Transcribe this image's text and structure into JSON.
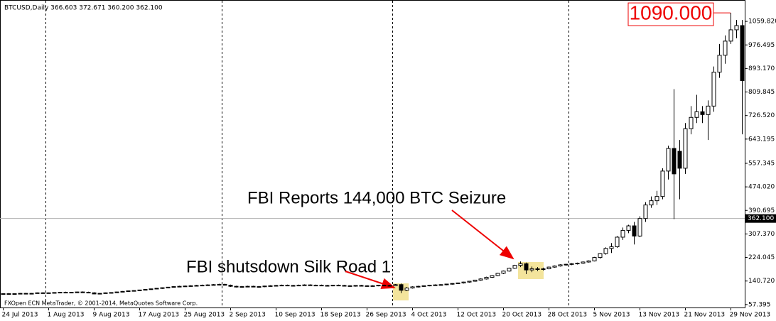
{
  "chart_data": {
    "type": "candlestick",
    "title": "BTCUSD,Daily  366.603 372.671 360.200 362.100",
    "footer": "FXOpen ECN MetaTrader, © 2001-2014, MetaQuotes Software Corp.",
    "categories": [
      "24 Jul 2013",
      null,
      null,
      null,
      null,
      null,
      null,
      null,
      "1 Aug 2013",
      null,
      null,
      null,
      null,
      null,
      null,
      null,
      "9 Aug 2013",
      null,
      null,
      null,
      null,
      null,
      null,
      null,
      "17 Aug 2013",
      null,
      null,
      null,
      null,
      null,
      null,
      null,
      "25 Aug 2013",
      null,
      null,
      null,
      null,
      null,
      null,
      null,
      "2 Sep 2013",
      null,
      null,
      null,
      null,
      null,
      null,
      null,
      "10 Sep 2013",
      null,
      null,
      null,
      null,
      null,
      null,
      null,
      "18 Sep 2013",
      null,
      null,
      null,
      null,
      null,
      null,
      null,
      "26 Sep 2013",
      null,
      null,
      null,
      null,
      null,
      null,
      null,
      "4 Oct 2013",
      null,
      null,
      null,
      null,
      null,
      null,
      null,
      "12 Oct 2013",
      null,
      null,
      null,
      null,
      null,
      null,
      null,
      "20 Oct 2013",
      null,
      null,
      null,
      null,
      null,
      null,
      null,
      "28 Oct 2013",
      null,
      null,
      null,
      null,
      null,
      null,
      null,
      "5 Nov 2013",
      null,
      null,
      null,
      null,
      null,
      null,
      null,
      "13 Nov 2013",
      null,
      null,
      null,
      null,
      null,
      null,
      null,
      "21 Nov 2013",
      null,
      null,
      null,
      null,
      null,
      null,
      null,
      "29 Nov 2013",
      null,
      null
    ],
    "open": [
      95,
      96,
      95,
      96,
      97,
      96,
      97,
      99,
      98,
      99,
      100,
      101,
      100,
      101,
      102,
      101,
      99,
      95,
      97,
      99,
      100,
      102,
      104,
      106,
      107,
      109,
      111,
      113,
      115,
      117,
      119,
      121,
      122,
      123,
      124,
      125,
      126,
      127,
      128,
      129,
      126,
      122,
      120,
      121,
      122,
      120,
      121,
      123,
      124,
      125,
      126,
      124,
      125,
      126,
      127,
      125,
      126,
      125,
      124,
      126,
      125,
      124,
      123,
      125,
      124,
      123,
      124,
      126,
      125,
      124,
      128,
      108,
      116,
      120,
      122,
      124,
      126,
      127,
      128,
      130,
      132,
      134,
      137,
      140,
      144,
      148,
      154,
      160,
      168,
      176,
      186,
      196,
      202,
      180,
      184,
      182,
      184,
      190,
      194,
      198,
      200,
      202,
      204,
      208,
      212,
      224,
      238,
      256,
      262,
      296,
      320,
      336,
      300,
      362,
      410,
      425,
      440,
      530,
      610,
      600,
      540,
      680,
      720,
      740,
      730,
      760,
      880,
      940,
      990,
      1030,
      1045
    ],
    "high": [
      97,
      98,
      97,
      98,
      99,
      98,
      100,
      101,
      100,
      101,
      102,
      103,
      102,
      103,
      104,
      103,
      101,
      98,
      100,
      101,
      103,
      105,
      107,
      108,
      110,
      112,
      114,
      116,
      118,
      120,
      122,
      124,
      125,
      126,
      127,
      128,
      129,
      130,
      131,
      131,
      128,
      124,
      123,
      124,
      124,
      123,
      124,
      126,
      127,
      128,
      128,
      127,
      128,
      129,
      129,
      128,
      128,
      127,
      127,
      128,
      127,
      126,
      126,
      127,
      126,
      126,
      127,
      128,
      127,
      130,
      132,
      120,
      122,
      124,
      125,
      127,
      129,
      130,
      131,
      133,
      135,
      138,
      141,
      145,
      150,
      156,
      162,
      170,
      178,
      188,
      198,
      210,
      206,
      192,
      190,
      188,
      192,
      196,
      200,
      202,
      204,
      206,
      210,
      214,
      226,
      240,
      260,
      275,
      300,
      330,
      340,
      350,
      370,
      420,
      440,
      460,
      540,
      620,
      820,
      640,
      700,
      760,
      800,
      760,
      780,
      900,
      980,
      1010,
      1090,
      1065,
      1065
    ],
    "low": [
      93,
      94,
      94,
      95,
      95,
      95,
      96,
      97,
      96,
      97,
      98,
      99,
      98,
      99,
      100,
      98,
      94,
      94,
      96,
      97,
      99,
      101,
      103,
      104,
      106,
      108,
      110,
      112,
      113,
      115,
      118,
      119,
      120,
      121,
      122,
      123,
      124,
      125,
      126,
      125,
      120,
      118,
      118,
      119,
      119,
      118,
      119,
      121,
      122,
      123,
      123,
      122,
      123,
      124,
      124,
      123,
      123,
      122,
      122,
      123,
      122,
      121,
      121,
      122,
      121,
      121,
      122,
      123,
      122,
      123,
      98,
      105,
      114,
      118,
      120,
      122,
      124,
      125,
      126,
      128,
      130,
      132,
      135,
      138,
      142,
      146,
      152,
      158,
      165,
      174,
      184,
      190,
      165,
      172,
      176,
      178,
      182,
      188,
      192,
      195,
      197,
      199,
      202,
      206,
      210,
      220,
      234,
      240,
      258,
      286,
      310,
      270,
      296,
      350,
      400,
      410,
      430,
      500,
      360,
      430,
      520,
      660,
      700,
      700,
      640,
      740,
      860,
      910,
      980,
      1000,
      660
    ],
    "close": [
      96,
      95,
      96,
      97,
      96,
      97,
      99,
      98,
      99,
      100,
      101,
      100,
      101,
      102,
      101,
      99,
      95,
      97,
      99,
      100,
      102,
      104,
      106,
      107,
      109,
      111,
      113,
      115,
      117,
      119,
      121,
      122,
      123,
      124,
      125,
      126,
      127,
      128,
      129,
      126,
      122,
      120,
      121,
      122,
      120,
      121,
      123,
      124,
      125,
      126,
      124,
      125,
      126,
      127,
      125,
      126,
      125,
      124,
      126,
      125,
      124,
      123,
      125,
      124,
      123,
      124,
      126,
      125,
      124,
      128,
      108,
      116,
      120,
      122,
      124,
      126,
      127,
      128,
      130,
      132,
      134,
      137,
      140,
      144,
      148,
      154,
      160,
      168,
      176,
      186,
      196,
      202,
      180,
      184,
      182,
      184,
      190,
      194,
      198,
      200,
      202,
      204,
      208,
      212,
      224,
      238,
      256,
      262,
      296,
      320,
      336,
      300,
      362,
      410,
      425,
      440,
      530,
      610,
      520,
      540,
      680,
      720,
      740,
      730,
      760,
      880,
      940,
      990,
      1030,
      1045,
      850
    ],
    "ylim": [
      47,
      1133
    ],
    "yticks": [
      {
        "value": 57.395,
        "label": "57.395"
      },
      {
        "value": 140.72,
        "label": "140.720"
      },
      {
        "value": 224.045,
        "label": "224.045"
      },
      {
        "value": 307.37,
        "label": "307.370"
      },
      {
        "value": 390.695,
        "label": "390.695"
      },
      {
        "value": 474.02,
        "label": "474.020"
      },
      {
        "value": 557.345,
        "label": "557.345"
      },
      {
        "value": 643.195,
        "label": "643.195"
      },
      {
        "value": 726.52,
        "label": "726.520"
      },
      {
        "value": 809.845,
        "label": "809.845"
      },
      {
        "value": 893.17,
        "label": "893.170"
      },
      {
        "value": 976.495,
        "label": "976.495"
      },
      {
        "value": 1059.82,
        "label": "1059.820"
      }
    ],
    "last_price": {
      "value": 362.1,
      "label": "362.100"
    },
    "peak": {
      "value": 1090,
      "label": "1090.000"
    },
    "annotations": [
      "FBI Reports 144,000 BTC Seizure",
      "FBI shutsdown Silk Road 1"
    ],
    "colors": {
      "bull": "#ffffff",
      "bear": "#000000",
      "outline": "#000000"
    }
  }
}
